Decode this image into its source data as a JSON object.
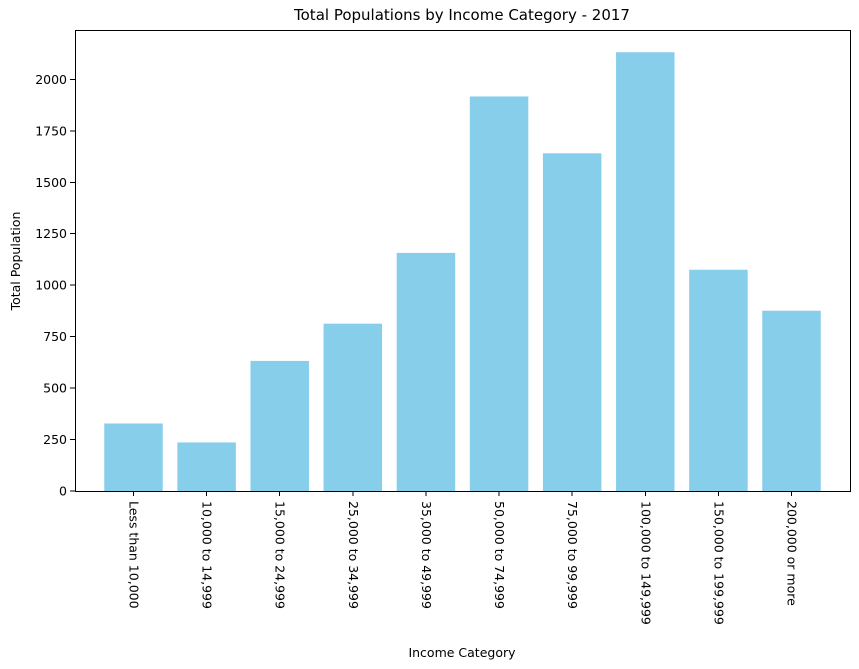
{
  "chart_data": {
    "type": "bar",
    "title": "Total Populations by Income Category - 2017",
    "xlabel": "Income Category",
    "ylabel": "Total Population",
    "categories": [
      "Less than 10,000",
      "10,000 to 14,999",
      "15,000 to 24,999",
      "25,000 to 34,999",
      "35,000 to 49,999",
      "50,000 to 74,999",
      "75,000 to 99,999",
      "100,000 to 149,999",
      "150,000 to 199,999",
      "200,000 or more"
    ],
    "values": [
      328,
      236,
      632,
      813,
      1157,
      1917,
      1641,
      2132,
      1075,
      876
    ],
    "ylim": [
      0,
      2240
    ],
    "yticks": [
      0,
      250,
      500,
      750,
      1000,
      1250,
      1500,
      1750,
      2000
    ],
    "bar_color": "#87ceeb",
    "grid": false,
    "xtick_rotation": "vertical"
  }
}
